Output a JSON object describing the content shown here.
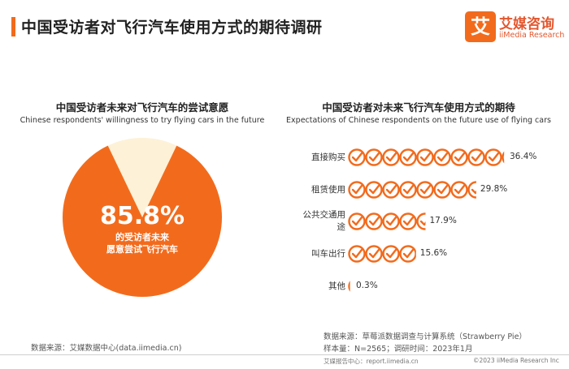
{
  "header": {
    "title": "中国受访者对飞行汽车使用方式的期待调研",
    "logo_char": "艾",
    "logo_cn": "艾媒咨询",
    "logo_en": "iiMedia Research"
  },
  "left_chart": {
    "title_cn": "中国受访者未来对飞行汽车的尝试意愿",
    "title_en": "Chinese respondents' willingness to try flying cars in the future",
    "value_text": "85.8%",
    "label_line1": "的受访者未来",
    "label_line2": "愿意尝试飞行汽车"
  },
  "right_chart": {
    "title_cn": "中国受访者对未来飞行汽车使用方式的期待",
    "title_en": "Expectations of Chinese respondents on the future use of flying cars",
    "rows": [
      {
        "label_line1": "直接购买",
        "label_line2": "",
        "value_label": "36.4%"
      },
      {
        "label_line1": "租赁使用",
        "label_line2": "",
        "value_label": "29.8%"
      },
      {
        "label_line1": "公共交通用",
        "label_line2": "途",
        "value_label": "17.9%"
      },
      {
        "label_line1": "叫车出行",
        "label_line2": "",
        "value_label": "15.6%"
      },
      {
        "label_line1": "其他",
        "label_line2": "",
        "value_label": "0.3%"
      }
    ]
  },
  "chart_data": [
    {
      "type": "pie",
      "title": "中国受访者未来对飞行汽车的尝试意愿",
      "subtitle": "Chinese respondents' willingness to try flying cars in the future",
      "slices": [
        {
          "label": "的受访者未来愿意尝试飞行汽车",
          "value": 85.8
        },
        {
          "label": "",
          "value": 14.2
        }
      ],
      "colors": [
        "#f26b1d",
        "#fdf1d7"
      ]
    },
    {
      "type": "bar",
      "title": "中国受访者对未来飞行汽车使用方式的期待",
      "subtitle": "Expectations of Chinese respondents on the future use of flying cars",
      "categories": [
        "直接购买",
        "租赁使用",
        "公共交通用途",
        "叫车出行",
        "其他"
      ],
      "values": [
        36.4,
        29.8,
        17.9,
        15.6,
        0.3
      ],
      "unit": "%",
      "icon_step": 4,
      "icon": "check-circle-icon",
      "color": "#f26b1d"
    }
  ],
  "footer": {
    "left_source": "数据来源：艾媒数据中心(data.iimedia.cn)",
    "right_source": "数据来源：草莓派数据调查与计算系统（Strawberry Pie）",
    "sample": "样本量：N=2565；调研时间：2023年1月",
    "bottom_left": "艾媒报告中心：report.iimedia.cn",
    "bottom_right": "©2023  iiMedia Research  Inc"
  }
}
